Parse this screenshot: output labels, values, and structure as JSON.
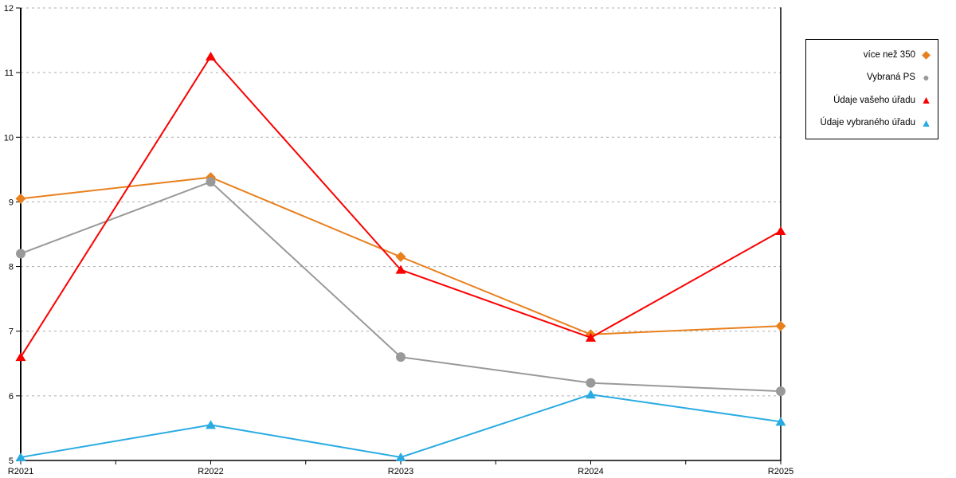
{
  "chart_data": {
    "type": "line",
    "categories": [
      "R2021",
      "R2022",
      "R2023",
      "R2024",
      "R2025"
    ],
    "series": [
      {
        "name": "více než 350",
        "color": "#E8801E",
        "marker": "diamond",
        "values": [
          9.05,
          9.38,
          8.15,
          6.95,
          7.08
        ]
      },
      {
        "name": "Vybraná PS",
        "color": "#999999",
        "marker": "circle",
        "values": [
          8.2,
          9.31,
          6.6,
          6.2,
          6.07
        ]
      },
      {
        "name": "Údaje vašeho úřadu",
        "color": "#FA0000",
        "marker": "triangle",
        "values": [
          6.6,
          11.25,
          7.95,
          6.9,
          8.55
        ]
      },
      {
        "name": "Údaje vybraného úřadu",
        "color": "#29ABE2",
        "marker": "triangle",
        "values": [
          5.05,
          5.55,
          5.05,
          6.02,
          5.6
        ]
      }
    ],
    "title": "",
    "xlabel": "",
    "ylabel": "",
    "ylim": [
      5,
      12
    ],
    "y_ticks": [
      5,
      6,
      7,
      8,
      9,
      10,
      11,
      12
    ],
    "grid": "horizontal-dashed",
    "grid_color": "#ADADAD",
    "axis_color": "#000000",
    "legend_position": "top-right"
  },
  "legend": {
    "marker_glyphs": {
      "diamond": "◆",
      "circle": "●",
      "triangle": "▲"
    }
  }
}
